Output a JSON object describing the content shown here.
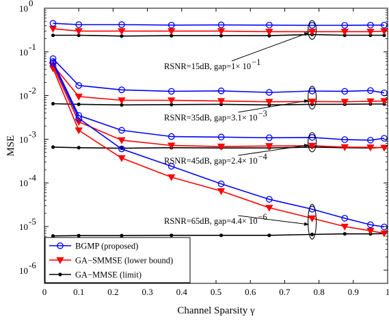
{
  "chart_data": {
    "type": "line",
    "xlabel": "Channel Sparsity γ",
    "ylabel": "MSE",
    "y_scale": "log",
    "xlim": [
      0,
      1
    ],
    "ylim": [
      5e-07,
      1
    ],
    "x_ticks": [
      0,
      0.1,
      0.2,
      0.3,
      0.4,
      0.5,
      0.6,
      0.7,
      0.8,
      0.9,
      1
    ],
    "x_tick_labels": [
      "0",
      "0.1",
      "0.2",
      "0.3",
      "0.4",
      "0.5",
      "0.6",
      "0.7",
      "0.8",
      "0.9",
      "1"
    ],
    "y_ticks": [
      1e-06,
      1e-05,
      0.0001,
      0.001,
      0.01,
      0.1,
      1
    ],
    "y_tick_labels": [
      {
        "base": "10",
        "exp": "-6"
      },
      {
        "base": "10",
        "exp": "-5"
      },
      {
        "base": "10",
        "exp": "-4"
      },
      {
        "base": "10",
        "exp": "-3"
      },
      {
        "base": "10",
        "exp": "-2"
      },
      {
        "base": "10",
        "exp": "-1"
      },
      {
        "base": "10",
        "exp": "0"
      }
    ],
    "grid": false,
    "legend_position": "bottom-left",
    "legend": [
      {
        "label": "BGMP (proposed)",
        "color": "#0000ff",
        "marker": "circle-open"
      },
      {
        "label": "GA−SMMSE (lower bound)",
        "color": "#ff0000",
        "marker": "triangle-down-filled"
      },
      {
        "label": "GA−MMSE (limit)",
        "color": "#000000",
        "marker": "dot-filled"
      }
    ],
    "x": [
      0.025,
      0.1,
      0.225,
      0.37,
      0.515,
      0.655,
      0.78,
      0.875,
      0.95,
      0.99
    ],
    "groups": [
      {
        "rsnr": "15dB",
        "annotation": {
          "text": "RSNR=15dB, gap=1× 10",
          "exp": "−1"
        },
        "bgmp": [
          0.45,
          0.42,
          0.42,
          0.41,
          0.415,
          0.41,
          0.405,
          0.405,
          0.41,
          0.41
        ],
        "smmse": [
          0.34,
          0.3,
          0.3,
          0.3,
          0.3,
          0.29,
          0.29,
          0.29,
          0.29,
          0.3
        ],
        "mmse": [
          0.24,
          0.24,
          0.23,
          0.235,
          0.235,
          0.235,
          0.25,
          0.24,
          0.24,
          0.24
        ]
      },
      {
        "rsnr": "35dB",
        "annotation": {
          "text": "RSNR=35dB, gap=3.1× 10",
          "exp": "−3"
        },
        "bgmp": [
          0.07,
          0.017,
          0.0135,
          0.0125,
          0.0128,
          0.0118,
          0.0127,
          0.0125,
          0.013,
          0.0115
        ],
        "smmse": [
          0.05,
          0.0095,
          0.0078,
          0.0078,
          0.0075,
          0.0072,
          0.0073,
          0.0072,
          0.0074,
          0.0075
        ],
        "mmse": [
          0.0065,
          0.0063,
          0.0061,
          0.0062,
          0.0063,
          0.0061,
          0.0063,
          0.0063,
          0.0064,
          0.0064
        ]
      },
      {
        "rsnr": "45dB",
        "annotation": {
          "text": "RSNR=45dB, gap=2.4× 10",
          "exp": "−4"
        },
        "bgmp": [
          0.06,
          0.0035,
          0.0016,
          0.00115,
          0.00112,
          0.00108,
          0.0011,
          0.00098,
          0.00095,
          0.00105
        ],
        "smmse": [
          0.048,
          0.0025,
          0.00095,
          0.00072,
          0.00068,
          0.0007,
          0.00071,
          0.00066,
          0.00065,
          0.00064
        ],
        "mmse": [
          0.00066,
          0.00064,
          0.00062,
          0.00064,
          0.00063,
          0.00063,
          0.00066,
          0.00064,
          0.00063,
          0.00065
        ]
      },
      {
        "rsnr": "65dB",
        "annotation": {
          "text": "RSNR=65dB, gap=4.4× 10",
          "exp": "−6"
        },
        "bgmp": [
          0.055,
          0.003,
          0.0006,
          0.00024,
          9.5e-05,
          4.2e-05,
          2.5e-05,
          1.55e-05,
          1.1e-05,
          9.8e-06
        ],
        "smmse": [
          0.042,
          0.0016,
          0.00037,
          0.000135,
          6.5e-05,
          2.7e-05,
          1.55e-05,
          1e-05,
          8e-06,
          7e-06
        ],
        "mmse": [
          6.1e-06,
          6.2e-06,
          6.2e-06,
          6.3e-06,
          6.3e-06,
          6.3e-06,
          6.6e-06,
          6.8e-06,
          6.8e-06,
          6.9e-06
        ]
      }
    ]
  }
}
